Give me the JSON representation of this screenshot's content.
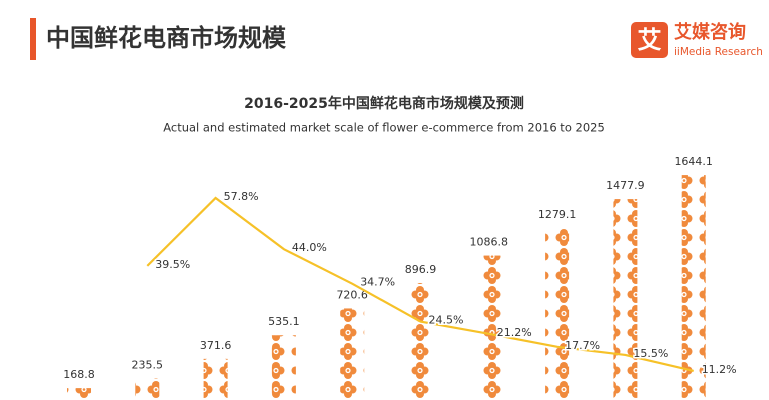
{
  "header": {
    "title": "中国鲜花电商市场规模",
    "logo_mark": "艾",
    "brand": "艾媒咨询",
    "brand_en": "iiMedia Research"
  },
  "chart_data": {
    "type": "bar",
    "title": "2016-2025年中国鲜花电商市场规模及预测",
    "subtitle": "Actual and estimated market scale of flower e-commerce from 2016 to 2025",
    "series": [
      {
        "type": "bar",
        "color": "#f08a3c",
        "values": [
          168.8,
          235.5,
          371.6,
          535.1,
          720.6,
          896.9,
          1086.8,
          1279.1,
          1477.9,
          1644.1
        ]
      },
      {
        "type": "line",
        "color": "#f6c128",
        "values": [
          null,
          39.5,
          57.8,
          44.0,
          34.7,
          24.5,
          21.2,
          17.7,
          15.5,
          11.2
        ],
        "value_labels": [
          null,
          "39.5%",
          "57.8%",
          "44.0%",
          "34.7%",
          "24.5%",
          "21.2%",
          "17.7%",
          "15.5%",
          "11.2%"
        ]
      }
    ]
  }
}
